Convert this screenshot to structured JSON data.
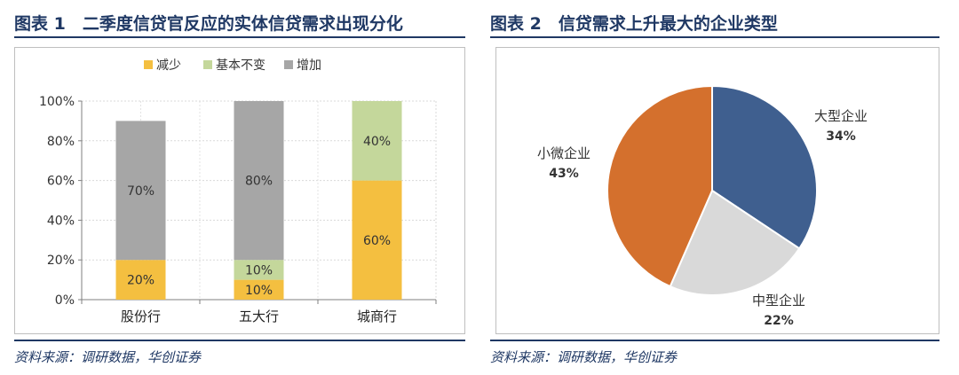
{
  "fig1": {
    "title": "图表 1　二季度信贷官反应的实体信贷需求出现分化",
    "source": "资料来源：调研数据，华创证券"
  },
  "fig2": {
    "title": "图表 2　信贷需求上升最大的企业类型",
    "source": "资料来源：调研数据，华创证券"
  },
  "chart_data": [
    {
      "type": "bar",
      "stacked": true,
      "categories": [
        "股份行",
        "五大行",
        "城商行"
      ],
      "series": [
        {
          "name": "减少",
          "color": "#f4bf40",
          "values": [
            20,
            10,
            60
          ],
          "labels": [
            "20%",
            "10%",
            "60%"
          ]
        },
        {
          "name": "基本不变",
          "color": "#c4d79b",
          "values": [
            0,
            10,
            40
          ],
          "labels": [
            "",
            "10%",
            "40%"
          ]
        },
        {
          "name": "增加",
          "color": "#a6a6a6",
          "values": [
            70,
            80,
            0
          ],
          "labels": [
            "70%",
            "80%",
            ""
          ]
        }
      ],
      "ylim": [
        0,
        100
      ],
      "yticks": [
        "0%",
        "20%",
        "40%",
        "60%",
        "80%",
        "100%"
      ],
      "grid": true,
      "legend": "top"
    },
    {
      "type": "pie",
      "slices": [
        {
          "label": "大型企业",
          "value": 34,
          "value_label": "34%",
          "color": "#3f5f8f"
        },
        {
          "label": "中型企业",
          "value": 22,
          "value_label": "22%",
          "color": "#d9d9d9"
        },
        {
          "label": "小微企业",
          "value": 43,
          "value_label": "43%",
          "color": "#d4702d"
        }
      ]
    }
  ]
}
